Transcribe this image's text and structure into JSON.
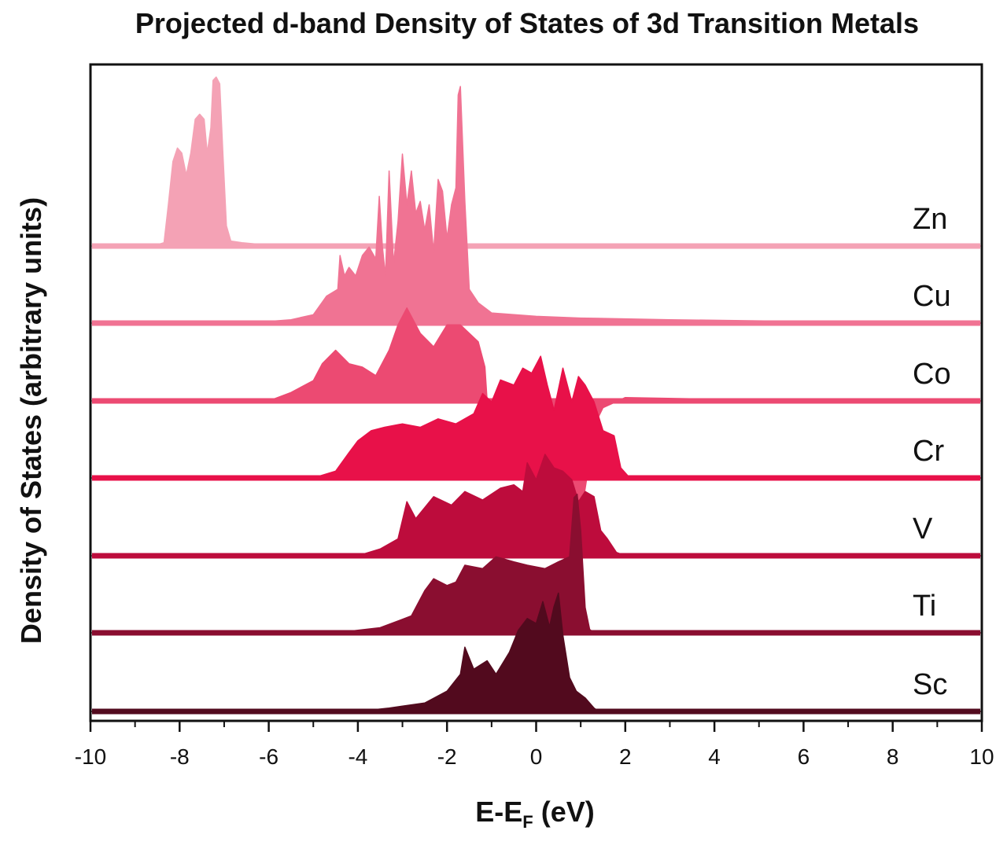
{
  "chart_data": {
    "type": "area",
    "title": "Projected d-band Density of States of 3d Transition Metals",
    "xlabel_main": "E-E",
    "xlabel_sub": "F",
    "xlabel_tail": " (eV)",
    "ylabel": "Density of States (arbitrary units)",
    "xlim": [
      -10,
      10
    ],
    "xticks": [
      -10,
      -8,
      -6,
      -4,
      -2,
      0,
      2,
      4,
      6,
      8,
      10
    ],
    "xtick_labels": [
      "-10",
      "-8",
      "-6",
      "-4",
      "-2",
      "0",
      "2",
      "4",
      "6",
      "8",
      "10"
    ],
    "grid": false,
    "stacking": "vertically offset, one panel per element",
    "series": [
      {
        "name": "Zn",
        "color": "#F4A2B5",
        "points": [
          [
            -10,
            0
          ],
          [
            -8.6,
            0
          ],
          [
            -8.35,
            0.02
          ],
          [
            -8.25,
            0.25
          ],
          [
            -8.15,
            0.5
          ],
          [
            -8.05,
            0.58
          ],
          [
            -7.95,
            0.55
          ],
          [
            -7.85,
            0.42
          ],
          [
            -7.75,
            0.55
          ],
          [
            -7.65,
            0.75
          ],
          [
            -7.55,
            0.78
          ],
          [
            -7.45,
            0.75
          ],
          [
            -7.38,
            0.55
          ],
          [
            -7.3,
            0.7
          ],
          [
            -7.25,
            0.98
          ],
          [
            -7.18,
            1.0
          ],
          [
            -7.1,
            0.96
          ],
          [
            -7.03,
            0.55
          ],
          [
            -6.95,
            0.12
          ],
          [
            -6.85,
            0.03
          ],
          [
            -6.6,
            0.02
          ],
          [
            -6.2,
            0.01
          ],
          [
            -5,
            0.005
          ],
          [
            0,
            0.005
          ],
          [
            10,
            0
          ]
        ]
      },
      {
        "name": "Cu",
        "color": "#F07393",
        "points": [
          [
            -10,
            0
          ],
          [
            -6.5,
            0
          ],
          [
            -5.5,
            0.02
          ],
          [
            -5,
            0.05
          ],
          [
            -4.7,
            0.16
          ],
          [
            -4.45,
            0.2
          ],
          [
            -4.4,
            0.4
          ],
          [
            -4.3,
            0.28
          ],
          [
            -4.2,
            0.33
          ],
          [
            -4.05,
            0.28
          ],
          [
            -3.9,
            0.4
          ],
          [
            -3.75,
            0.45
          ],
          [
            -3.6,
            0.38
          ],
          [
            -3.52,
            0.75
          ],
          [
            -3.45,
            0.45
          ],
          [
            -3.38,
            0.28
          ],
          [
            -3.3,
            0.9
          ],
          [
            -3.2,
            0.35
          ],
          [
            -3.1,
            0.6
          ],
          [
            -3.0,
            1.0
          ],
          [
            -2.9,
            0.7
          ],
          [
            -2.8,
            0.9
          ],
          [
            -2.7,
            0.65
          ],
          [
            -2.6,
            0.72
          ],
          [
            -2.5,
            0.55
          ],
          [
            -2.4,
            0.7
          ],
          [
            -2.3,
            0.42
          ],
          [
            -2.2,
            0.85
          ],
          [
            -2.1,
            0.78
          ],
          [
            -2.0,
            0.5
          ],
          [
            -1.9,
            0.7
          ],
          [
            -1.8,
            0.8
          ],
          [
            -1.75,
            1.35
          ],
          [
            -1.7,
            1.4
          ],
          [
            -1.6,
            0.72
          ],
          [
            -1.5,
            0.2
          ],
          [
            -1.3,
            0.12
          ],
          [
            -1.0,
            0.06
          ],
          [
            0,
            0.04
          ],
          [
            1,
            0.03
          ],
          [
            3,
            0.02
          ],
          [
            6,
            0.01
          ],
          [
            10,
            0
          ]
        ]
      },
      {
        "name": "Co",
        "color": "#EC4A72",
        "points": [
          [
            -10,
            0
          ],
          [
            -6,
            0
          ],
          [
            -5.5,
            0.05
          ],
          [
            -5.0,
            0.12
          ],
          [
            -4.8,
            0.22
          ],
          [
            -4.5,
            0.3
          ],
          [
            -4.2,
            0.22
          ],
          [
            -3.9,
            0.2
          ],
          [
            -3.6,
            0.15
          ],
          [
            -3.3,
            0.3
          ],
          [
            -3.1,
            0.45
          ],
          [
            -2.9,
            0.55
          ],
          [
            -2.6,
            0.4
          ],
          [
            -2.3,
            0.32
          ],
          [
            -2.0,
            0.45
          ],
          [
            -1.7,
            0.45
          ],
          [
            -1.3,
            0.35
          ],
          [
            -1.15,
            0.2
          ],
          [
            -1.1,
            0
          ],
          [
            -1.0,
            -0.15
          ],
          [
            -0.8,
            -0.3
          ],
          [
            -0.6,
            -0.42
          ],
          [
            -0.3,
            -0.28
          ],
          [
            0,
            -0.35
          ],
          [
            0.3,
            -0.25
          ],
          [
            0.55,
            -0.42
          ],
          [
            0.8,
            -0.5
          ],
          [
            0.95,
            -0.75
          ],
          [
            1.05,
            -0.6
          ],
          [
            1.2,
            -0.35
          ],
          [
            1.35,
            -0.12
          ],
          [
            1.5,
            -0.04
          ],
          [
            2,
            0.02
          ],
          [
            4,
            0.01
          ],
          [
            6,
            0.005
          ],
          [
            10,
            0
          ]
        ]
      },
      {
        "name": "Cr",
        "color": "#E81149",
        "points": [
          [
            -10,
            0
          ],
          [
            -5,
            0
          ],
          [
            -4.5,
            0.04
          ],
          [
            -4.2,
            0.15
          ],
          [
            -4.0,
            0.22
          ],
          [
            -3.7,
            0.28
          ],
          [
            -3.4,
            0.3
          ],
          [
            -3.0,
            0.32
          ],
          [
            -2.6,
            0.3
          ],
          [
            -2.2,
            0.35
          ],
          [
            -1.8,
            0.32
          ],
          [
            -1.4,
            0.38
          ],
          [
            -1.2,
            0.5
          ],
          [
            -1.0,
            0.45
          ],
          [
            -0.8,
            0.58
          ],
          [
            -0.5,
            0.55
          ],
          [
            -0.3,
            0.65
          ],
          [
            -0.1,
            0.62
          ],
          [
            0.1,
            0.72
          ],
          [
            0.25,
            0.55
          ],
          [
            0.4,
            0.4
          ],
          [
            0.6,
            0.65
          ],
          [
            0.8,
            0.45
          ],
          [
            0.95,
            0.6
          ],
          [
            1.1,
            0.55
          ],
          [
            1.3,
            0.45
          ],
          [
            1.5,
            0.28
          ],
          [
            1.75,
            0.25
          ],
          [
            1.9,
            0.06
          ],
          [
            2.1,
            0
          ],
          [
            10,
            0
          ]
        ]
      },
      {
        "name": "V",
        "color": "#BD0C3C",
        "points": [
          [
            -10,
            0
          ],
          [
            -4,
            0
          ],
          [
            -3.5,
            0.04
          ],
          [
            -3.1,
            0.1
          ],
          [
            -2.9,
            0.32
          ],
          [
            -2.7,
            0.22
          ],
          [
            -2.3,
            0.35
          ],
          [
            -1.9,
            0.3
          ],
          [
            -1.6,
            0.38
          ],
          [
            -1.2,
            0.33
          ],
          [
            -0.8,
            0.4
          ],
          [
            -0.5,
            0.42
          ],
          [
            -0.3,
            0.38
          ],
          [
            -0.2,
            0.55
          ],
          [
            0,
            0.45
          ],
          [
            0.2,
            0.6
          ],
          [
            0.4,
            0.52
          ],
          [
            0.6,
            0.5
          ],
          [
            0.8,
            0.45
          ],
          [
            0.95,
            0.32
          ],
          [
            1.1,
            0.38
          ],
          [
            1.3,
            0.35
          ],
          [
            1.45,
            0.15
          ],
          [
            1.6,
            0.1
          ],
          [
            1.8,
            0.02
          ],
          [
            2.0,
            0
          ],
          [
            10,
            0
          ]
        ]
      },
      {
        "name": "Ti",
        "color": "#8A0E30",
        "points": [
          [
            -10,
            0
          ],
          [
            -4.5,
            0
          ],
          [
            -3.5,
            0.03
          ],
          [
            -2.8,
            0.1
          ],
          [
            -2.5,
            0.25
          ],
          [
            -2.3,
            0.32
          ],
          [
            -2.0,
            0.28
          ],
          [
            -1.8,
            0.3
          ],
          [
            -1.6,
            0.4
          ],
          [
            -1.2,
            0.38
          ],
          [
            -0.9,
            0.45
          ],
          [
            -0.5,
            0.42
          ],
          [
            -0.2,
            0.4
          ],
          [
            0.2,
            0.38
          ],
          [
            0.5,
            0.42
          ],
          [
            0.75,
            0.45
          ],
          [
            0.85,
            0.8
          ],
          [
            0.92,
            0.82
          ],
          [
            1.0,
            0.6
          ],
          [
            1.1,
            0.15
          ],
          [
            1.2,
            0.02
          ],
          [
            1.3,
            0
          ],
          [
            10,
            0
          ]
        ]
      },
      {
        "name": "Sc",
        "color": "#520A1E",
        "points": [
          [
            -10,
            0
          ],
          [
            -4,
            0
          ],
          [
            -3.3,
            0.02
          ],
          [
            -2.5,
            0.05
          ],
          [
            -2.0,
            0.12
          ],
          [
            -1.7,
            0.22
          ],
          [
            -1.6,
            0.38
          ],
          [
            -1.4,
            0.25
          ],
          [
            -1.1,
            0.3
          ],
          [
            -0.9,
            0.22
          ],
          [
            -0.6,
            0.35
          ],
          [
            -0.4,
            0.48
          ],
          [
            -0.2,
            0.55
          ],
          [
            0,
            0.52
          ],
          [
            0.15,
            0.65
          ],
          [
            0.3,
            0.5
          ],
          [
            0.4,
            0.62
          ],
          [
            0.5,
            0.7
          ],
          [
            0.6,
            0.45
          ],
          [
            0.75,
            0.2
          ],
          [
            0.9,
            0.12
          ],
          [
            1.1,
            0.08
          ],
          [
            1.3,
            0.02
          ],
          [
            1.4,
            0
          ],
          [
            10,
            0
          ]
        ]
      }
    ]
  }
}
